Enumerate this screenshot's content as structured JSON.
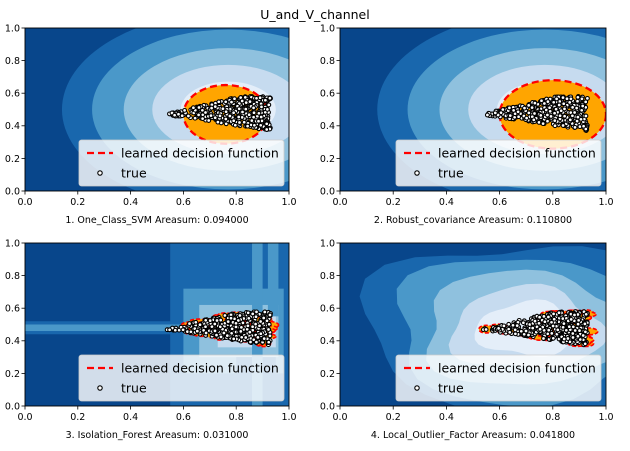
{
  "figure": {
    "suptitle": "U_and_V_channel"
  },
  "legend_labels": {
    "line": "learned decision function",
    "points": "true"
  },
  "colors": {
    "contour_levels": [
      "#08468b",
      "#1967ad",
      "#4a98c9",
      "#8fc1de",
      "#c6dbef",
      "#e4eef9",
      "#f5f9fe"
    ],
    "inlier_fill": "#ffa500",
    "decision_line": "#ff0000",
    "point_edge": "#000000",
    "point_face": "#ffffff"
  },
  "chart_data": [
    {
      "type": "scatter",
      "title": "",
      "xlabel": "1. One_Class_SVM  Areasum: 0.094000",
      "ylabel": "",
      "xlim": [
        0,
        1
      ],
      "ylim": [
        0,
        1
      ],
      "xticks": [
        "0.0",
        "0.2",
        "0.4",
        "0.6",
        "0.8",
        "1.0"
      ],
      "yticks": [
        "0.0",
        "0.2",
        "0.4",
        "0.6",
        "0.8",
        "1.0"
      ],
      "background": "smooth",
      "boundary": "ellipse",
      "legend": "lower-right",
      "series": [
        {
          "name": "learned decision function",
          "kind": "line"
        },
        {
          "name": "true",
          "kind": "points"
        }
      ]
    },
    {
      "type": "scatter",
      "title": "",
      "xlabel": "2. Robust_covariance  Areasum: 0.110800",
      "ylabel": "",
      "xlim": [
        0,
        1
      ],
      "ylim": [
        0,
        1
      ],
      "xticks": [
        "0.0",
        "0.2",
        "0.4",
        "0.6",
        "0.8",
        "1.0"
      ],
      "yticks": [
        "0.0",
        "0.2",
        "0.4",
        "0.6",
        "0.8",
        "1.0"
      ],
      "background": "smooth",
      "boundary": "ellipse",
      "legend": "lower-right",
      "series": [
        {
          "name": "learned decision function",
          "kind": "line"
        },
        {
          "name": "true",
          "kind": "points"
        }
      ]
    },
    {
      "type": "scatter",
      "title": "",
      "xlabel": "3. Isolation_Forest  Areasum: 0.031000",
      "ylabel": "",
      "xlim": [
        0,
        1
      ],
      "ylim": [
        0,
        1
      ],
      "xticks": [
        "0.0",
        "0.2",
        "0.4",
        "0.6",
        "0.8",
        "1.0"
      ],
      "yticks": [
        "0.0",
        "0.2",
        "0.4",
        "0.6",
        "0.8",
        "1.0"
      ],
      "background": "blocky",
      "boundary": "tight",
      "legend": "lower-right",
      "series": [
        {
          "name": "learned decision function",
          "kind": "line"
        },
        {
          "name": "true",
          "kind": "points"
        }
      ]
    },
    {
      "type": "scatter",
      "title": "",
      "xlabel": "4. Local_Outlier_Factor  Areasum: 0.041800",
      "ylabel": "",
      "xlim": [
        0,
        1
      ],
      "ylim": [
        0,
        1
      ],
      "xticks": [
        "0.0",
        "0.2",
        "0.4",
        "0.6",
        "0.8",
        "1.0"
      ],
      "yticks": [
        "0.0",
        "0.2",
        "0.4",
        "0.6",
        "0.8",
        "1.0"
      ],
      "background": "smooth",
      "boundary": "tight",
      "legend": "lower-right",
      "series": [
        {
          "name": "learned decision function",
          "kind": "line"
        },
        {
          "name": "true",
          "kind": "points"
        }
      ]
    }
  ]
}
